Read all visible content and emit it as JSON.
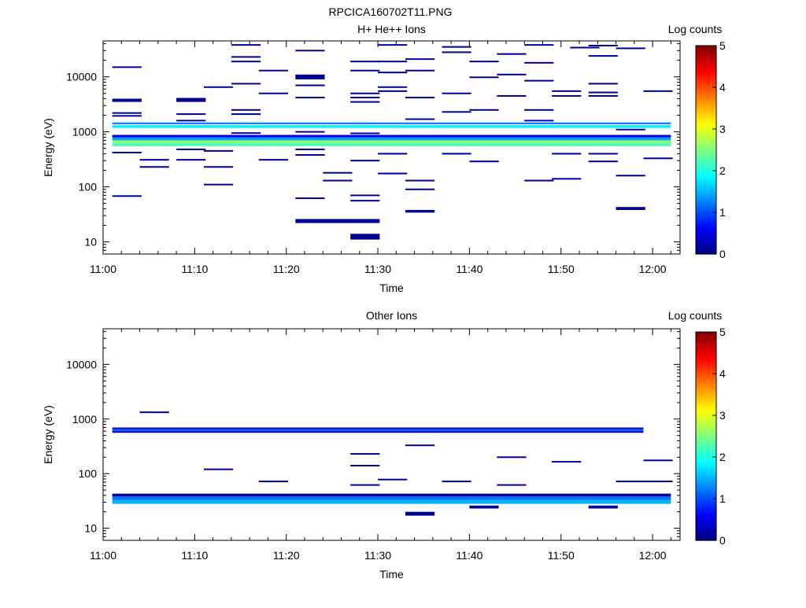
{
  "figure_title": "RPCICA160702T11.PNG",
  "colorbar": {
    "label": "Log counts",
    "ticks": [
      "0",
      "1",
      "2",
      "3",
      "4",
      "5"
    ],
    "range": [
      0,
      5
    ]
  },
  "chart_data": [
    {
      "type": "heatmap",
      "title": "H+ He++ Ions",
      "xlabel": "Time",
      "ylabel": "Energy (eV)",
      "y_scale": "log",
      "xlim": [
        "11:00",
        "12:03"
      ],
      "ylim": [
        6,
        45000
      ],
      "x_ticks": [
        "11:00",
        "11:10",
        "11:20",
        "11:30",
        "11:40",
        "11:50",
        "12:00"
      ],
      "y_ticks": [
        "10",
        "100",
        "1000",
        "10000"
      ],
      "value_label": "Log counts",
      "cell_width_minutes": 3.2,
      "bands": [
        {
          "energy_eV": [
            1380,
            1480
          ],
          "t_start": "11:01",
          "t_end": "12:02",
          "value": 1.2
        },
        {
          "energy_eV": [
            1180,
            1320
          ],
          "t_start": "11:01",
          "t_end": "12:02",
          "value": 1.8
        },
        {
          "energy_eV": [
            790,
            880
          ],
          "t_start": "11:01",
          "t_end": "12:02",
          "value": 0.5
        },
        {
          "energy_eV": [
            700,
            790
          ],
          "t_start": "11:01",
          "t_end": "12:02",
          "value": 1.4
        },
        {
          "energy_eV": [
            620,
            700
          ],
          "t_start": "11:01",
          "t_end": "12:02",
          "value": 2.6
        },
        {
          "energy_eV": [
            550,
            620
          ],
          "t_start": "11:01",
          "t_end": "12:02",
          "value": 2.2
        }
      ],
      "cells": [
        {
          "t": "11:01",
          "energy_eV": [
            3500,
            4000
          ],
          "value": 0.1
        },
        {
          "t": "11:01",
          "energy_eV": 15000,
          "value": 0.1
        },
        {
          "t": "11:01",
          "energy_eV": 2200,
          "value": 0.1
        },
        {
          "t": "11:01",
          "energy_eV": 1950,
          "value": 0.1
        },
        {
          "t": "11:01",
          "energy_eV": 420,
          "value": 0.1
        },
        {
          "t": "11:01",
          "energy_eV": 68,
          "value": 0.1
        },
        {
          "t": "11:04",
          "energy_eV": 310,
          "value": 0.1
        },
        {
          "t": "11:04",
          "energy_eV": 230,
          "value": 0.1
        },
        {
          "t": "11:08",
          "energy_eV": [
            3500,
            4000
          ],
          "value": 0.1
        },
        {
          "t": "11:08",
          "energy_eV": 4000,
          "value": 0.1
        },
        {
          "t": "11:08",
          "energy_eV": 2100,
          "value": 0.1
        },
        {
          "t": "11:08",
          "energy_eV": 1600,
          "value": 0.1
        },
        {
          "t": "11:08",
          "energy_eV": 480,
          "value": 0.1
        },
        {
          "t": "11:08",
          "energy_eV": 310,
          "value": 0.1
        },
        {
          "t": "11:11",
          "energy_eV": 6500,
          "value": 0.1
        },
        {
          "t": "11:11",
          "energy_eV": 450,
          "value": 0.1
        },
        {
          "t": "11:11",
          "energy_eV": 230,
          "value": 0.1
        },
        {
          "t": "11:11",
          "energy_eV": 110,
          "value": 0.1
        },
        {
          "t": "11:14",
          "energy_eV": 38000,
          "value": 0.1
        },
        {
          "t": "11:14",
          "energy_eV": 23000,
          "value": 0.1
        },
        {
          "t": "11:14",
          "energy_eV": 19000,
          "value": 0.1
        },
        {
          "t": "11:14",
          "energy_eV": 7500,
          "value": 0.1
        },
        {
          "t": "11:14",
          "energy_eV": 2500,
          "value": 0.1
        },
        {
          "t": "11:14",
          "energy_eV": 2100,
          "value": 0.1
        },
        {
          "t": "11:14",
          "energy_eV": 950,
          "value": 0.1
        },
        {
          "t": "11:17",
          "energy_eV": 13000,
          "value": 0.1
        },
        {
          "t": "11:17",
          "energy_eV": 5000,
          "value": 0.1
        },
        {
          "t": "11:17",
          "energy_eV": 310,
          "value": 0.1
        },
        {
          "t": "11:21",
          "energy_eV": 30000,
          "value": 0.1
        },
        {
          "t": "11:21",
          "energy_eV": [
            9000,
            11000
          ],
          "value": 0.1
        },
        {
          "t": "11:21",
          "energy_eV": 7000,
          "value": 0.1
        },
        {
          "t": "11:21",
          "energy_eV": 4200,
          "value": 0.1
        },
        {
          "t": "11:21",
          "energy_eV": 1000,
          "value": 0.1
        },
        {
          "t": "11:21",
          "energy_eV": 480,
          "value": 0.1
        },
        {
          "t": "11:21",
          "energy_eV": 380,
          "value": 0.1
        },
        {
          "t": "11:21",
          "energy_eV": 62,
          "value": 0.1
        },
        {
          "t": "11:21",
          "energy_eV": [
            22,
            26
          ],
          "t_end": "11:27",
          "value": 0.1
        },
        {
          "t": "11:24",
          "energy_eV": 180,
          "value": 0.1
        },
        {
          "t": "11:24",
          "energy_eV": 130,
          "value": 0.1
        },
        {
          "t": "11:27",
          "energy_eV": 19000,
          "value": 0.1
        },
        {
          "t": "11:27",
          "energy_eV": 13000,
          "value": 0.1
        },
        {
          "t": "11:27",
          "energy_eV": 5000,
          "value": 0.1
        },
        {
          "t": "11:27",
          "energy_eV": 4200,
          "value": 0.1
        },
        {
          "t": "11:27",
          "energy_eV": 3500,
          "value": 0.1
        },
        {
          "t": "11:27",
          "energy_eV": 940,
          "value": 0.1
        },
        {
          "t": "11:27",
          "energy_eV": 300,
          "value": 0.1
        },
        {
          "t": "11:27",
          "energy_eV": 70,
          "value": 0.1
        },
        {
          "t": "11:27",
          "energy_eV": 56,
          "value": 0.1
        },
        {
          "t": "11:27",
          "energy_eV": [
            11,
            14
          ],
          "value": 0.1
        },
        {
          "t": "11:30",
          "energy_eV": 38000,
          "value": 0.1
        },
        {
          "t": "11:30",
          "energy_eV": 19000,
          "value": 0.1
        },
        {
          "t": "11:30",
          "energy_eV": 12000,
          "value": 0.1
        },
        {
          "t": "11:30",
          "energy_eV": 6500,
          "value": 0.1
        },
        {
          "t": "11:30",
          "energy_eV": 5500,
          "value": 0.1
        },
        {
          "t": "11:30",
          "energy_eV": 400,
          "value": 0.1
        },
        {
          "t": "11:30",
          "energy_eV": 175,
          "value": 0.1
        },
        {
          "t": "11:33",
          "energy_eV": 21000,
          "value": 0.1
        },
        {
          "t": "11:33",
          "energy_eV": 13000,
          "value": 0.1
        },
        {
          "t": "11:33",
          "energy_eV": 4200,
          "value": 0.1
        },
        {
          "t": "11:33",
          "energy_eV": 1700,
          "value": 0.1
        },
        {
          "t": "11:33",
          "energy_eV": 130,
          "value": 0.1
        },
        {
          "t": "11:33",
          "energy_eV": 90,
          "value": 0.1
        },
        {
          "t": "11:33",
          "energy_eV": [
            34,
            38
          ],
          "value": 0.1
        },
        {
          "t": "11:37",
          "energy_eV": 35000,
          "value": 0.1
        },
        {
          "t": "11:37",
          "energy_eV": 28000,
          "value": 0.1
        },
        {
          "t": "11:37",
          "energy_eV": 5000,
          "value": 0.1
        },
        {
          "t": "11:37",
          "energy_eV": 2300,
          "value": 0.1
        },
        {
          "t": "11:37",
          "energy_eV": 400,
          "value": 0.1
        },
        {
          "t": "11:40",
          "energy_eV": 19000,
          "value": 0.1
        },
        {
          "t": "11:40",
          "energy_eV": 9800,
          "value": 0.1
        },
        {
          "t": "11:40",
          "energy_eV": 2500,
          "value": 0.1
        },
        {
          "t": "11:40",
          "energy_eV": 290,
          "value": 0.1
        },
        {
          "t": "11:43",
          "energy_eV": 26000,
          "value": 0.1
        },
        {
          "t": "11:43",
          "energy_eV": 11000,
          "value": 0.1
        },
        {
          "t": "11:43",
          "energy_eV": 4500,
          "value": 0.1
        },
        {
          "t": "11:46",
          "energy_eV": 38000,
          "value": 0.1
        },
        {
          "t": "11:46",
          "energy_eV": 18000,
          "value": 0.1
        },
        {
          "t": "11:46",
          "energy_eV": 8500,
          "value": 0.1
        },
        {
          "t": "11:46",
          "energy_eV": 2500,
          "value": 0.1
        },
        {
          "t": "11:46",
          "energy_eV": 1600,
          "value": 0.4
        },
        {
          "t": "11:46",
          "energy_eV": 130,
          "value": 0.1
        },
        {
          "t": "11:49",
          "energy_eV": 5500,
          "value": 0.1
        },
        {
          "t": "11:49",
          "energy_eV": 4500,
          "value": 0.1
        },
        {
          "t": "11:49",
          "energy_eV": 400,
          "value": 0.1
        },
        {
          "t": "11:49",
          "energy_eV": 140,
          "value": 0.1
        },
        {
          "t": "11:51",
          "energy_eV": 34000,
          "value": 0.1
        },
        {
          "t": "11:53",
          "energy_eV": 37000,
          "value": 0.1
        },
        {
          "t": "11:53",
          "energy_eV": 24000,
          "value": 0.1
        },
        {
          "t": "11:53",
          "energy_eV": 7500,
          "value": 0.1
        },
        {
          "t": "11:53",
          "energy_eV": 5200,
          "value": 0.1
        },
        {
          "t": "11:53",
          "energy_eV": 4500,
          "value": 0.1
        },
        {
          "t": "11:53",
          "energy_eV": 400,
          "value": 0.1
        },
        {
          "t": "11:53",
          "energy_eV": 290,
          "value": 0.1
        },
        {
          "t": "11:56",
          "energy_eV": 33000,
          "value": 0.1
        },
        {
          "t": "11:56",
          "energy_eV": 1100,
          "value": 0.1
        },
        {
          "t": "11:56",
          "energy_eV": 160,
          "value": 0.1
        },
        {
          "t": "11:56",
          "energy_eV": [
            38,
            43
          ],
          "value": 0.1
        },
        {
          "t": "11:59",
          "energy_eV": 5500,
          "value": 0.1
        },
        {
          "t": "11:59",
          "energy_eV": 330,
          "value": 0.1
        }
      ]
    },
    {
      "type": "heatmap",
      "title": "Other Ions",
      "xlabel": "Time",
      "ylabel": "Energy (eV)",
      "y_scale": "log",
      "xlim": [
        "11:00",
        "12:03"
      ],
      "ylim": [
        6,
        45000
      ],
      "x_ticks": [
        "11:00",
        "11:10",
        "11:20",
        "11:30",
        "11:40",
        "11:50",
        "12:00"
      ],
      "y_ticks": [
        "10",
        "100",
        "1000",
        "10000"
      ],
      "value_label": "Log counts",
      "cell_width_minutes": 3.2,
      "bands": [
        {
          "energy_eV": [
            650,
            700
          ],
          "t_start": "11:01",
          "t_end": "11:59",
          "value": 0.4
        },
        {
          "energy_eV": [
            600,
            650
          ],
          "t_start": "11:01",
          "t_end": "11:59",
          "value": 1.1
        },
        {
          "energy_eV": [
            560,
            600
          ],
          "t_start": "11:01",
          "t_end": "11:59",
          "value": 0.3
        },
        {
          "energy_eV": [
            38,
            43
          ],
          "t_start": "11:01",
          "t_end": "12:02",
          "value": 0.1
        },
        {
          "energy_eV": [
            33,
            38
          ],
          "t_start": "11:01",
          "t_end": "12:02",
          "value": 1.2
        },
        {
          "energy_eV": [
            28,
            33
          ],
          "t_start": "11:01",
          "t_end": "12:02",
          "value": 1.5
        }
      ],
      "cells": [
        {
          "t": "11:04",
          "energy_eV": 1330,
          "value": 0.1
        },
        {
          "t": "11:11",
          "energy_eV": 120,
          "value": 0.1
        },
        {
          "t": "11:17",
          "energy_eV": 72,
          "value": 0.1
        },
        {
          "t": "11:27",
          "energy_eV": 230,
          "value": 0.1
        },
        {
          "t": "11:27",
          "energy_eV": 140,
          "value": 0.1
        },
        {
          "t": "11:27",
          "energy_eV": 62,
          "value": 0.1
        },
        {
          "t": "11:30",
          "energy_eV": 78,
          "value": 0.1
        },
        {
          "t": "11:33",
          "energy_eV": 330,
          "value": 0.1
        },
        {
          "t": "11:33",
          "energy_eV": [
            17,
            20
          ],
          "value": 0.1
        },
        {
          "t": "11:37",
          "energy_eV": 72,
          "value": 0.1
        },
        {
          "t": "11:40",
          "energy_eV": [
            23,
            26
          ],
          "value": 0.1
        },
        {
          "t": "11:43",
          "energy_eV": 200,
          "value": 0.1
        },
        {
          "t": "11:43",
          "energy_eV": 62,
          "value": 0.1
        },
        {
          "t": "11:49",
          "energy_eV": 165,
          "value": 0.1
        },
        {
          "t": "11:53",
          "energy_eV": [
            23,
            26
          ],
          "value": 0.1
        },
        {
          "t": "11:56",
          "energy_eV": 72,
          "value": 0.1
        },
        {
          "t": "11:59",
          "energy_eV": 175,
          "value": 0.1
        },
        {
          "t": "11:59",
          "energy_eV": 72,
          "value": 0.1
        }
      ]
    }
  ]
}
